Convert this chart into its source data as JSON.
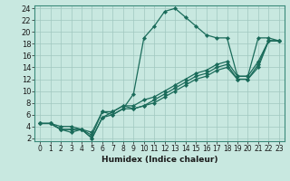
{
  "xlabel": "Humidex (Indice chaleur)",
  "background_color": "#c8e8e0",
  "grid_color": "#a0c8c0",
  "line_color": "#1a6b5a",
  "xlim": [
    -0.5,
    23.5
  ],
  "ylim": [
    1.5,
    24.5
  ],
  "xticks": [
    0,
    1,
    2,
    3,
    4,
    5,
    6,
    7,
    8,
    9,
    10,
    11,
    12,
    13,
    14,
    15,
    16,
    17,
    18,
    19,
    20,
    21,
    22,
    23
  ],
  "yticks": [
    2,
    4,
    6,
    8,
    10,
    12,
    14,
    16,
    18,
    20,
    22,
    24
  ],
  "series": [
    {
      "x": [
        0,
        1,
        2,
        3,
        4,
        5,
        6,
        7,
        8,
        9,
        10,
        11,
        12,
        13,
        14,
        15,
        16,
        17,
        18,
        19,
        20,
        21,
        22,
        23
      ],
      "y": [
        4.5,
        4.5,
        4.0,
        4.0,
        3.5,
        2.5,
        6.5,
        6.0,
        7.0,
        9.5,
        19.0,
        21.0,
        23.5,
        24.0,
        22.5,
        21.0,
        19.5,
        19.0,
        19.0,
        12.5,
        12.5,
        19.0,
        19.0,
        18.5
      ]
    },
    {
      "x": [
        0,
        1,
        2,
        3,
        4,
        5,
        6,
        7,
        8,
        9,
        10,
        11,
        12,
        13,
        14,
        15,
        16,
        17,
        18,
        19,
        20,
        21,
        22,
        23
      ],
      "y": [
        4.5,
        4.5,
        3.5,
        3.0,
        3.5,
        3.0,
        6.5,
        6.5,
        7.5,
        7.5,
        8.5,
        9.0,
        10.0,
        11.0,
        12.0,
        13.0,
        13.5,
        14.5,
        15.0,
        12.5,
        12.5,
        15.0,
        18.5,
        18.5
      ]
    },
    {
      "x": [
        0,
        1,
        2,
        3,
        4,
        5,
        6,
        7,
        8,
        9,
        10,
        11,
        12,
        13,
        14,
        15,
        16,
        17,
        18,
        19,
        20,
        21,
        22,
        23
      ],
      "y": [
        4.5,
        4.5,
        3.5,
        3.5,
        3.5,
        2.0,
        5.5,
        6.5,
        7.5,
        7.0,
        7.5,
        8.5,
        9.5,
        10.5,
        11.5,
        12.5,
        13.0,
        14.0,
        14.5,
        12.0,
        12.0,
        14.5,
        18.5,
        18.5
      ]
    },
    {
      "x": [
        0,
        1,
        2,
        3,
        4,
        5,
        6,
        7,
        8,
        9,
        10,
        11,
        12,
        13,
        14,
        15,
        16,
        17,
        18,
        19,
        20,
        21,
        22,
        23
      ],
      "y": [
        4.5,
        4.5,
        3.5,
        3.5,
        3.5,
        2.0,
        5.5,
        6.0,
        7.0,
        7.0,
        7.5,
        8.0,
        9.0,
        10.0,
        11.0,
        12.0,
        12.5,
        13.5,
        14.0,
        12.0,
        12.0,
        14.0,
        18.5,
        18.5
      ]
    }
  ],
  "xlabel_fontsize": 6.5,
  "tick_fontsize_x": 5.5,
  "tick_fontsize_y": 6.0,
  "linewidth": 0.9,
  "markersize": 2.2
}
